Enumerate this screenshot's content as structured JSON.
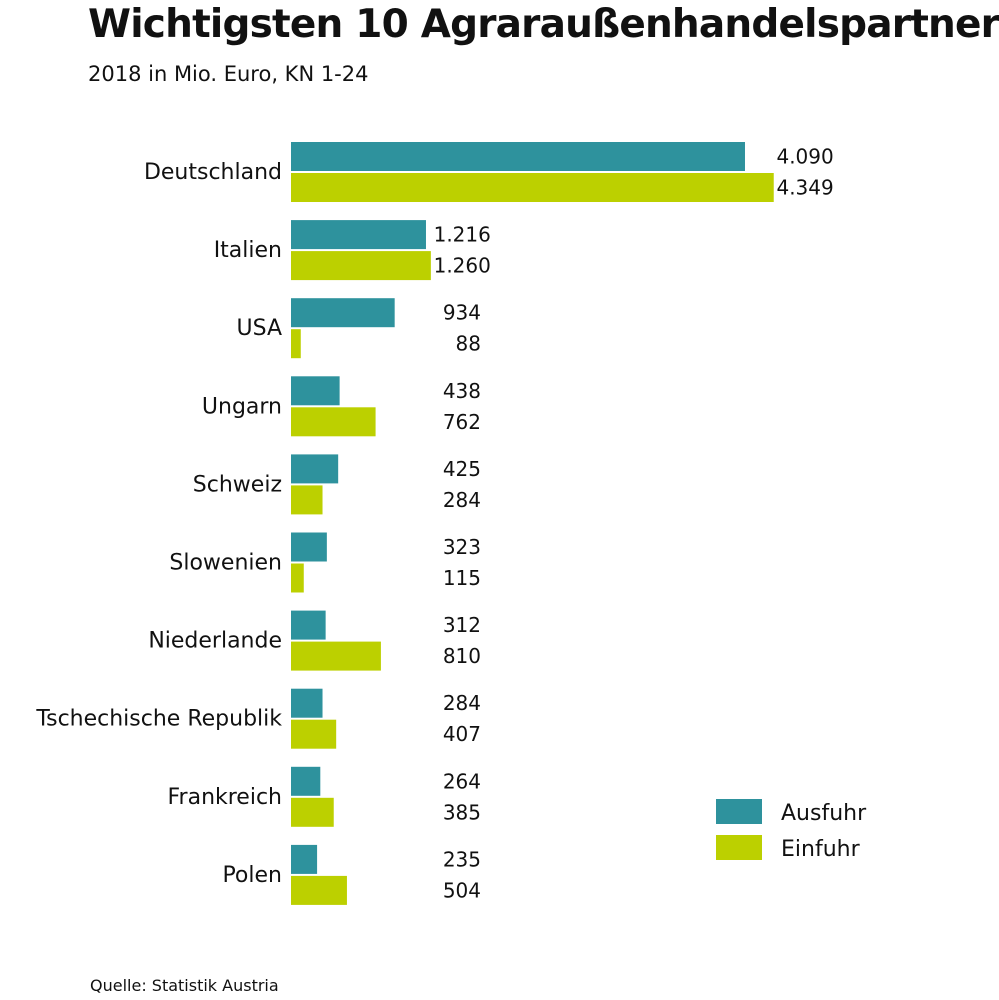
{
  "colors": {
    "export": "#2e929d",
    "import": "#bcd000",
    "text": "#111111"
  },
  "source": "Quelle: Statistik Austria",
  "chart_data": {
    "type": "bar",
    "orientation": "horizontal",
    "title": "Wichtigsten 10 Agraraußenhandelspartner",
    "subtitle": "2018 in Mio. Euro, KN 1-24",
    "categories": [
      "Deutschland",
      "Italien",
      "USA",
      "Ungarn",
      "Schweiz",
      "Slowenien",
      "Niederlande",
      "Tschechische Republik",
      "Frankreich",
      "Polen"
    ],
    "series": [
      {
        "name": "Ausfuhr",
        "color": "#2e929d",
        "values": [
          4090,
          1216,
          934,
          438,
          425,
          323,
          312,
          284,
          264,
          235
        ],
        "labels": [
          "4.090",
          "1.216",
          "934",
          "438",
          "425",
          "323",
          "312",
          "284",
          "264",
          "235"
        ]
      },
      {
        "name": "Einfuhr",
        "color": "#bcd000",
        "values": [
          4349,
          1260,
          88,
          762,
          284,
          115,
          810,
          407,
          385,
          504
        ],
        "labels": [
          "4.349",
          "1.260",
          "88",
          "762",
          "284",
          "115",
          "810",
          "407",
          "385",
          "504"
        ]
      }
    ],
    "legend": {
      "position": "bottom-right",
      "entries": [
        "Ausfuhr",
        "Einfuhr"
      ]
    },
    "grid": false
  }
}
